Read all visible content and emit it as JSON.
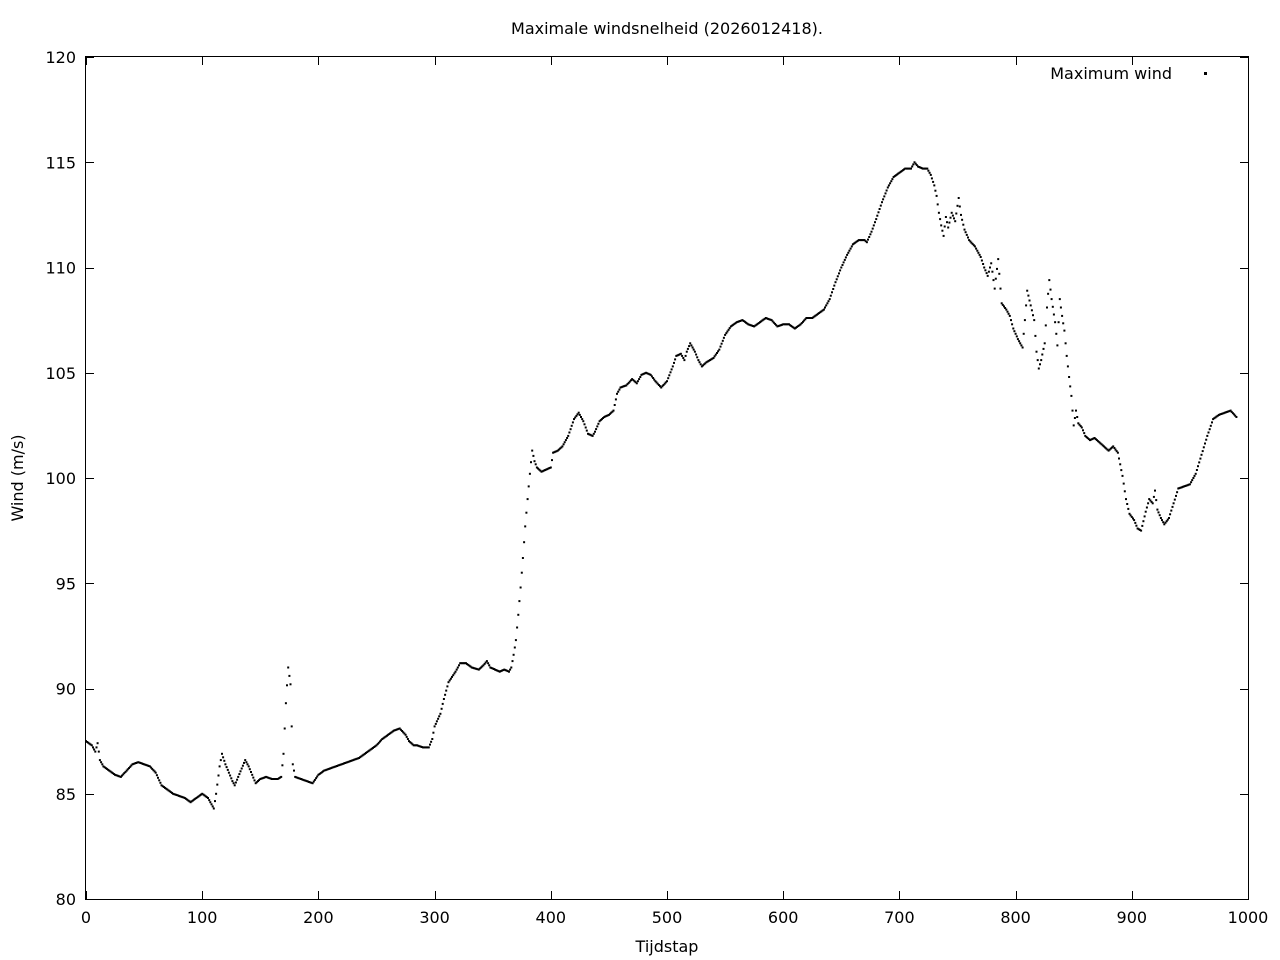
{
  "chart_data": {
    "type": "scatter",
    "title": "Maximale windsnelheid (2026012418).",
    "xlabel": "Tijdstap",
    "ylabel": "Wind (m/s)",
    "xlim": [
      0,
      1000
    ],
    "ylim": [
      80,
      120
    ],
    "x_ticks": [
      0,
      100,
      200,
      300,
      400,
      500,
      600,
      700,
      800,
      900,
      1000
    ],
    "y_ticks": [
      80,
      85,
      90,
      95,
      100,
      105,
      110,
      115,
      120
    ],
    "grid": false,
    "legend_position": "top-right",
    "series": [
      {
        "name": "Maximum wind",
        "color": "#000000",
        "marker": "dot",
        "points": [
          [
            0,
            87.5
          ],
          [
            5,
            87.3
          ],
          [
            8,
            87.0
          ],
          [
            10,
            87.4
          ],
          [
            12,
            86.6
          ],
          [
            15,
            86.3
          ],
          [
            20,
            86.1
          ],
          [
            25,
            85.9
          ],
          [
            30,
            85.8
          ],
          [
            35,
            86.1
          ],
          [
            40,
            86.4
          ],
          [
            45,
            86.5
          ],
          [
            50,
            86.4
          ],
          [
            55,
            86.3
          ],
          [
            60,
            86.0
          ],
          [
            65,
            85.4
          ],
          [
            70,
            85.2
          ],
          [
            75,
            85.0
          ],
          [
            80,
            84.9
          ],
          [
            85,
            84.8
          ],
          [
            90,
            84.6
          ],
          [
            95,
            84.8
          ],
          [
            100,
            85.0
          ],
          [
            105,
            84.8
          ],
          [
            108,
            84.5
          ],
          [
            110,
            84.3
          ],
          [
            112,
            85.0
          ],
          [
            115,
            86.3
          ],
          [
            117,
            86.9
          ],
          [
            120,
            86.4
          ],
          [
            123,
            86.0
          ],
          [
            126,
            85.6
          ],
          [
            128,
            85.4
          ],
          [
            131,
            85.8
          ],
          [
            134,
            86.2
          ],
          [
            137,
            86.6
          ],
          [
            140,
            86.3
          ],
          [
            143,
            85.9
          ],
          [
            146,
            85.5
          ],
          [
            150,
            85.7
          ],
          [
            155,
            85.8
          ],
          [
            160,
            85.7
          ],
          [
            165,
            85.7
          ],
          [
            168,
            85.8
          ],
          [
            170,
            86.9
          ],
          [
            172,
            89.3
          ],
          [
            174,
            91.0
          ],
          [
            175,
            90.6
          ],
          [
            176,
            90.2
          ],
          [
            177,
            88.2
          ],
          [
            178,
            86.4
          ],
          [
            180,
            85.8
          ],
          [
            185,
            85.7
          ],
          [
            190,
            85.6
          ],
          [
            195,
            85.5
          ],
          [
            200,
            85.9
          ],
          [
            205,
            86.1
          ],
          [
            210,
            86.2
          ],
          [
            215,
            86.3
          ],
          [
            220,
            86.4
          ],
          [
            225,
            86.5
          ],
          [
            230,
            86.6
          ],
          [
            235,
            86.7
          ],
          [
            240,
            86.9
          ],
          [
            245,
            87.1
          ],
          [
            250,
            87.3
          ],
          [
            255,
            87.6
          ],
          [
            260,
            87.8
          ],
          [
            265,
            88.0
          ],
          [
            270,
            88.1
          ],
          [
            275,
            87.8
          ],
          [
            278,
            87.5
          ],
          [
            282,
            87.3
          ],
          [
            285,
            87.3
          ],
          [
            290,
            87.2
          ],
          [
            295,
            87.2
          ],
          [
            298,
            87.6
          ],
          [
            300,
            88.2
          ],
          [
            305,
            88.8
          ],
          [
            308,
            89.5
          ],
          [
            312,
            90.3
          ],
          [
            318,
            90.8
          ],
          [
            322,
            91.2
          ],
          [
            327,
            91.2
          ],
          [
            332,
            91.0
          ],
          [
            338,
            90.9
          ],
          [
            342,
            91.1
          ],
          [
            345,
            91.3
          ],
          [
            348,
            91.0
          ],
          [
            352,
            90.9
          ],
          [
            356,
            90.8
          ],
          [
            360,
            90.9
          ],
          [
            364,
            90.8
          ],
          [
            366,
            91.0
          ],
          [
            368,
            91.6
          ],
          [
            370,
            92.3
          ],
          [
            372,
            93.5
          ],
          [
            374,
            94.8
          ],
          [
            376,
            96.2
          ],
          [
            378,
            97.7
          ],
          [
            380,
            99.0
          ],
          [
            382,
            100.2
          ],
          [
            384,
            101.3
          ],
          [
            386,
            100.8
          ],
          [
            388,
            100.5
          ],
          [
            392,
            100.3
          ],
          [
            396,
            100.4
          ],
          [
            400,
            100.5
          ],
          [
            402,
            101.2
          ],
          [
            406,
            101.3
          ],
          [
            410,
            101.5
          ],
          [
            415,
            102.0
          ],
          [
            420,
            102.8
          ],
          [
            424,
            103.1
          ],
          [
            428,
            102.7
          ],
          [
            432,
            102.1
          ],
          [
            436,
            102.0
          ],
          [
            438,
            102.2
          ],
          [
            442,
            102.7
          ],
          [
            446,
            102.9
          ],
          [
            450,
            103.0
          ],
          [
            454,
            103.2
          ],
          [
            457,
            104.0
          ],
          [
            460,
            104.3
          ],
          [
            465,
            104.4
          ],
          [
            470,
            104.7
          ],
          [
            474,
            104.5
          ],
          [
            478,
            104.9
          ],
          [
            482,
            105.0
          ],
          [
            486,
            104.9
          ],
          [
            490,
            104.6
          ],
          [
            495,
            104.3
          ],
          [
            500,
            104.6
          ],
          [
            505,
            105.3
          ],
          [
            508,
            105.8
          ],
          [
            512,
            105.9
          ],
          [
            515,
            105.6
          ],
          [
            517,
            106.0
          ],
          [
            520,
            106.4
          ],
          [
            524,
            106.0
          ],
          [
            527,
            105.6
          ],
          [
            530,
            105.3
          ],
          [
            534,
            105.5
          ],
          [
            540,
            105.7
          ],
          [
            545,
            106.1
          ],
          [
            550,
            106.8
          ],
          [
            555,
            107.2
          ],
          [
            560,
            107.4
          ],
          [
            565,
            107.5
          ],
          [
            570,
            107.3
          ],
          [
            575,
            107.2
          ],
          [
            580,
            107.4
          ],
          [
            585,
            107.6
          ],
          [
            590,
            107.5
          ],
          [
            595,
            107.2
          ],
          [
            600,
            107.3
          ],
          [
            605,
            107.3
          ],
          [
            610,
            107.1
          ],
          [
            615,
            107.3
          ],
          [
            620,
            107.6
          ],
          [
            625,
            107.6
          ],
          [
            630,
            107.8
          ],
          [
            635,
            108.0
          ],
          [
            640,
            108.5
          ],
          [
            645,
            109.3
          ],
          [
            650,
            110.0
          ],
          [
            655,
            110.6
          ],
          [
            660,
            111.1
          ],
          [
            665,
            111.3
          ],
          [
            670,
            111.3
          ],
          [
            672,
            111.2
          ],
          [
            676,
            111.7
          ],
          [
            680,
            112.3
          ],
          [
            685,
            113.1
          ],
          [
            690,
            113.8
          ],
          [
            695,
            114.3
          ],
          [
            700,
            114.5
          ],
          [
            705,
            114.7
          ],
          [
            710,
            114.7
          ],
          [
            713,
            115.0
          ],
          [
            716,
            114.8
          ],
          [
            720,
            114.7
          ],
          [
            724,
            114.7
          ],
          [
            727,
            114.4
          ],
          [
            730,
            113.9
          ],
          [
            732,
            113.4
          ],
          [
            734,
            112.6
          ],
          [
            736,
            112.0
          ],
          [
            738,
            111.5
          ],
          [
            740,
            112.4
          ],
          [
            742,
            111.9
          ],
          [
            745,
            112.6
          ],
          [
            748,
            112.2
          ],
          [
            751,
            113.3
          ],
          [
            753,
            112.5
          ],
          [
            756,
            111.8
          ],
          [
            760,
            111.3
          ],
          [
            765,
            111.0
          ],
          [
            770,
            110.5
          ],
          [
            773,
            110.0
          ],
          [
            776,
            109.6
          ],
          [
            779,
            110.2
          ],
          [
            782,
            109.0
          ],
          [
            785,
            110.4
          ],
          [
            788,
            108.3
          ],
          [
            792,
            108.0
          ],
          [
            795,
            107.7
          ],
          [
            798,
            107.1
          ],
          [
            802,
            106.6
          ],
          [
            806,
            106.2
          ],
          [
            808,
            107.5
          ],
          [
            810,
            108.9
          ],
          [
            813,
            108.2
          ],
          [
            816,
            107.5
          ],
          [
            818,
            106.0
          ],
          [
            820,
            105.2
          ],
          [
            822,
            105.6
          ],
          [
            825,
            106.4
          ],
          [
            827,
            108.1
          ],
          [
            829,
            109.4
          ],
          [
            831,
            108.5
          ],
          [
            834,
            107.4
          ],
          [
            836,
            106.3
          ],
          [
            838,
            108.5
          ],
          [
            840,
            107.7
          ],
          [
            842,
            107.0
          ],
          [
            844,
            105.8
          ],
          [
            846,
            104.8
          ],
          [
            848,
            103.9
          ],
          [
            850,
            102.5
          ],
          [
            852,
            103.2
          ],
          [
            854,
            102.6
          ],
          [
            857,
            102.4
          ],
          [
            860,
            102.0
          ],
          [
            864,
            101.8
          ],
          [
            868,
            101.9
          ],
          [
            872,
            101.7
          ],
          [
            876,
            101.5
          ],
          [
            880,
            101.3
          ],
          [
            884,
            101.5
          ],
          [
            888,
            101.2
          ],
          [
            892,
            100.1
          ],
          [
            895,
            99.0
          ],
          [
            898,
            98.3
          ],
          [
            902,
            98.0
          ],
          [
            905,
            97.6
          ],
          [
            908,
            97.5
          ],
          [
            912,
            98.4
          ],
          [
            915,
            99.0
          ],
          [
            918,
            98.8
          ],
          [
            920,
            99.4
          ],
          [
            922,
            98.5
          ],
          [
            925,
            98.1
          ],
          [
            928,
            97.8
          ],
          [
            932,
            98.1
          ],
          [
            936,
            98.8
          ],
          [
            940,
            99.5
          ],
          [
            945,
            99.6
          ],
          [
            950,
            99.7
          ],
          [
            955,
            100.2
          ],
          [
            960,
            101.1
          ],
          [
            965,
            102.0
          ],
          [
            970,
            102.8
          ],
          [
            975,
            103.0
          ],
          [
            980,
            103.1
          ],
          [
            985,
            103.2
          ],
          [
            990,
            102.9
          ]
        ]
      }
    ]
  }
}
